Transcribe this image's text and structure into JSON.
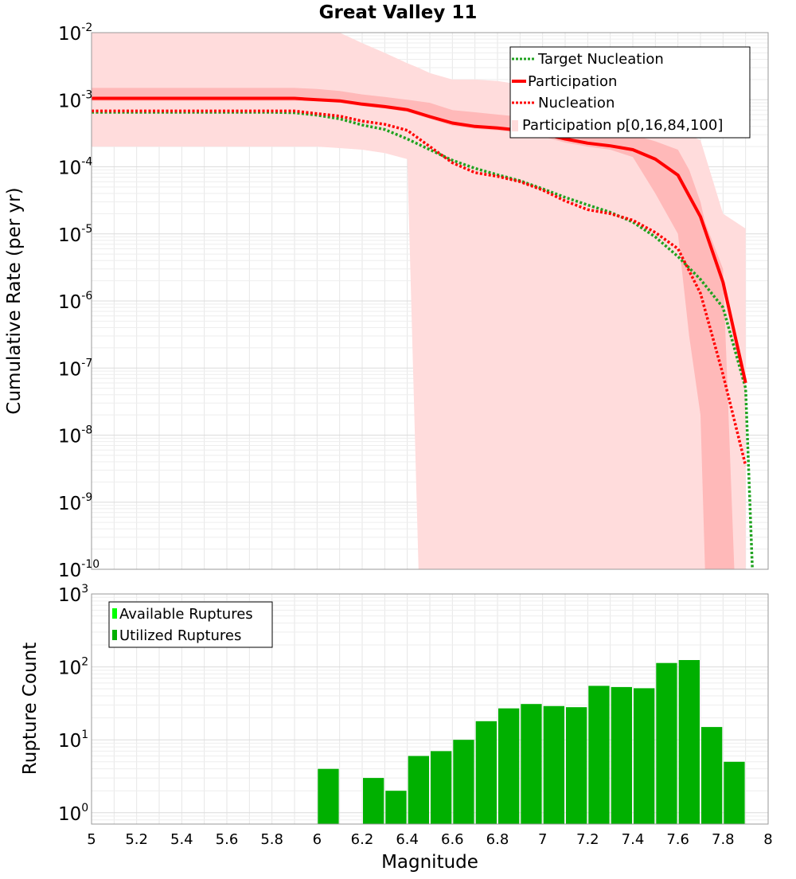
{
  "title": "Great Valley 11",
  "colors": {
    "target_nucleation": "#1fa21f",
    "participation": "#ff0000",
    "nucleation": "#ff0000",
    "band_outer": "#ffdcdc",
    "band_inner": "#ffb9b9",
    "available_ruptures": "#00ff00",
    "utilized_ruptures": "#00b000",
    "grid": "#e6e6e6",
    "frame": "#999999"
  },
  "chart_data": [
    {
      "type": "line",
      "title": "Great Valley 11",
      "xlabel": "",
      "ylabel": "Cumulative Rate (per yr)",
      "xlim": [
        5,
        8
      ],
      "ylim": [
        1e-10,
        0.01
      ],
      "yscale": "log",
      "y_ticks": [
        {
          "base": "10",
          "exp": "-10",
          "value": 1e-10
        },
        {
          "base": "10",
          "exp": "-9",
          "value": 1e-09
        },
        {
          "base": "10",
          "exp": "-8",
          "value": 1e-08
        },
        {
          "base": "10",
          "exp": "-7",
          "value": 1e-07
        },
        {
          "base": "10",
          "exp": "-6",
          "value": 1e-06
        },
        {
          "base": "10",
          "exp": "-5",
          "value": 1e-05
        },
        {
          "base": "10",
          "exp": "-4",
          "value": 0.0001
        },
        {
          "base": "10",
          "exp": "-3",
          "value": 0.001
        },
        {
          "base": "10",
          "exp": "-2",
          "value": 0.01
        }
      ],
      "grid": true,
      "legend_position": "top-right",
      "legend": [
        "Target Nucleation",
        "Participation",
        "Nucleation",
        "Participation p[0,16,84,100]"
      ],
      "series": [
        {
          "name": "Target Nucleation",
          "style": "dotted",
          "x": [
            5,
            5.1,
            5.2,
            5.3,
            5.4,
            5.5,
            5.6,
            5.7,
            5.8,
            5.9,
            6.0,
            6.1,
            6.2,
            6.3,
            6.4,
            6.5,
            6.6,
            6.7,
            6.8,
            6.9,
            7.0,
            7.1,
            7.2,
            7.3,
            7.4,
            7.5,
            7.6,
            7.7,
            7.8,
            7.9,
            7.93
          ],
          "y": [
            0.00065,
            0.00065,
            0.00065,
            0.00065,
            0.00065,
            0.00065,
            0.00065,
            0.00065,
            0.00065,
            0.00064,
            0.00059,
            0.00052,
            0.00042,
            0.00036,
            0.00026,
            0.00018,
            0.000125,
            9.5e-05,
            7.6e-05,
            6.2e-05,
            4.7e-05,
            3.5e-05,
            2.7e-05,
            2.1e-05,
            1.5e-05,
            9e-06,
            4.6e-06,
            2.1e-06,
            8e-07,
            5e-08,
            1e-10
          ]
        },
        {
          "name": "Participation",
          "style": "solid",
          "x": [
            5,
            5.1,
            5.2,
            5.3,
            5.4,
            5.5,
            5.6,
            5.7,
            5.8,
            5.9,
            6.0,
            6.1,
            6.2,
            6.3,
            6.4,
            6.5,
            6.6,
            6.7,
            6.8,
            6.9,
            7.0,
            7.1,
            7.2,
            7.3,
            7.4,
            7.5,
            7.6,
            7.7,
            7.8,
            7.9
          ],
          "y": [
            0.00105,
            0.00105,
            0.00105,
            0.00105,
            0.00105,
            0.00105,
            0.00105,
            0.00105,
            0.00105,
            0.00105,
            0.001,
            0.00096,
            0.00086,
            0.00079,
            0.00071,
            0.00056,
            0.00045,
            0.0004,
            0.00038,
            0.00035,
            0.00031,
            0.00026,
            0.000225,
            0.000205,
            0.00018,
            0.00013,
            7.5e-05,
            1.8e-05,
            1.9e-06,
            6e-08
          ]
        },
        {
          "name": "Nucleation",
          "style": "dotted",
          "x": [
            5,
            5.1,
            5.2,
            5.3,
            5.4,
            5.5,
            5.6,
            5.7,
            5.8,
            5.9,
            6.0,
            6.1,
            6.2,
            6.3,
            6.4,
            6.5,
            6.6,
            6.7,
            6.8,
            6.9,
            7.0,
            7.1,
            7.2,
            7.3,
            7.4,
            7.5,
            7.6,
            7.7,
            7.8,
            7.9
          ],
          "y": [
            0.00068,
            0.00068,
            0.00068,
            0.00068,
            0.00068,
            0.00068,
            0.00068,
            0.00068,
            0.00068,
            0.00068,
            0.00062,
            0.00057,
            0.00048,
            0.00043,
            0.00035,
            0.0002,
            0.000115,
            8.2e-05,
            7.2e-05,
            6e-05,
            4.5e-05,
            3.1e-05,
            2.3e-05,
            2e-05,
            1.6e-05,
            1.05e-05,
            6e-06,
            1.3e-06,
            8e-08,
            3.5e-09
          ]
        }
      ],
      "bands": [
        {
          "name": "Participation p[0,16,84,100] outer",
          "x": [
            5,
            5.1,
            5.2,
            5.3,
            5.4,
            5.5,
            5.6,
            5.7,
            5.8,
            5.9,
            6.0,
            6.1,
            6.2,
            6.3,
            6.4,
            6.45,
            6.5,
            6.6,
            6.7,
            6.8,
            6.9,
            7.0,
            7.1,
            7.2,
            7.3,
            7.4,
            7.5,
            7.6,
            7.7,
            7.8,
            7.9
          ],
          "low": [
            0.0002,
            0.0002,
            0.0002,
            0.0002,
            0.0002,
            0.0002,
            0.0002,
            0.0002,
            0.0002,
            0.0002,
            0.0002,
            0.00019,
            0.00018,
            0.00016,
            0.00013,
            1e-10,
            1e-10,
            1e-10,
            1e-10,
            1e-10,
            1e-10,
            1e-10,
            1e-10,
            1e-10,
            1e-10,
            1e-10,
            1e-10,
            1e-10,
            1e-10,
            1e-10,
            1e-10
          ],
          "high": [
            0.01,
            0.01,
            0.01,
            0.01,
            0.01,
            0.01,
            0.01,
            0.01,
            0.01,
            0.01,
            0.01,
            0.01,
            0.007,
            0.005,
            0.0035,
            0.003,
            0.0025,
            0.002,
            0.002,
            0.0019,
            0.0017,
            0.0012,
            0.001,
            0.0008,
            0.0007,
            0.0006,
            0.0005,
            0.00035,
            0.00025,
            2e-05,
            1.2e-05
          ]
        },
        {
          "name": "Participation p[0,16,84,100] inner",
          "x": [
            5,
            5.1,
            5.2,
            5.3,
            5.4,
            5.5,
            5.6,
            5.7,
            5.8,
            5.9,
            6.0,
            6.1,
            6.2,
            6.3,
            6.4,
            6.5,
            6.6,
            6.7,
            6.8,
            6.9,
            7.0,
            7.1,
            7.2,
            7.3,
            7.4,
            7.5,
            7.6,
            7.65,
            7.7,
            7.72,
            7.8,
            7.85
          ],
          "low": [
            0.00096,
            0.00096,
            0.00096,
            0.00096,
            0.00096,
            0.00096,
            0.00096,
            0.00096,
            0.00096,
            0.00096,
            0.00095,
            0.0009,
            0.0008,
            0.00074,
            0.00066,
            0.00052,
            0.00041,
            0.00037,
            0.00035,
            0.00032,
            0.00028,
            0.00023,
            0.0002,
            0.00018,
            0.00014,
            4e-05,
            1e-05,
            3e-07,
            2e-08,
            1e-10,
            1e-10,
            1e-10
          ],
          "high": [
            0.0015,
            0.0015,
            0.0015,
            0.0015,
            0.0015,
            0.0015,
            0.0015,
            0.0015,
            0.0015,
            0.0015,
            0.00145,
            0.00135,
            0.0012,
            0.0011,
            0.001,
            0.0009,
            0.0007,
            0.00065,
            0.0006,
            0.00056,
            0.0005,
            0.00043,
            0.00038,
            0.00034,
            0.0003,
            0.00024,
            0.00018,
            9e-05,
            3e-05,
            1.5e-05,
            3e-06,
            1e-10
          ]
        }
      ]
    },
    {
      "type": "bar",
      "xlabel": "Magnitude",
      "ylabel": "Rupture Count",
      "xlim": [
        5,
        8
      ],
      "ylim": [
        0.7,
        1000
      ],
      "yscale": "log",
      "x_ticks": [
        "5",
        "5.2",
        "5.4",
        "5.6",
        "5.8",
        "6",
        "6.2",
        "6.4",
        "6.6",
        "6.8",
        "7",
        "7.2",
        "7.4",
        "7.6",
        "7.8",
        "8"
      ],
      "y_ticks": [
        {
          "base": "10",
          "exp": "0",
          "value": 1
        },
        {
          "base": "10",
          "exp": "1",
          "value": 10
        },
        {
          "base": "10",
          "exp": "2",
          "value": 100
        },
        {
          "base": "10",
          "exp": "3",
          "value": 1000
        }
      ],
      "grid": true,
      "legend_position": "top-left",
      "legend": [
        "Available Ruptures",
        "Utilized Ruptures"
      ],
      "bin_width": 0.1,
      "bins": [
        6.05,
        6.25,
        6.35,
        6.45,
        6.55,
        6.65,
        6.75,
        6.85,
        6.95,
        7.05,
        7.15,
        7.25,
        7.35,
        7.45,
        7.55,
        7.65,
        7.75,
        7.85
      ],
      "series": [
        {
          "name": "Utilized Ruptures",
          "values": [
            4,
            3,
            2,
            6,
            7,
            10,
            18,
            27,
            31,
            29,
            28,
            55,
            53,
            51,
            113,
            124,
            15,
            5
          ]
        }
      ]
    }
  ]
}
